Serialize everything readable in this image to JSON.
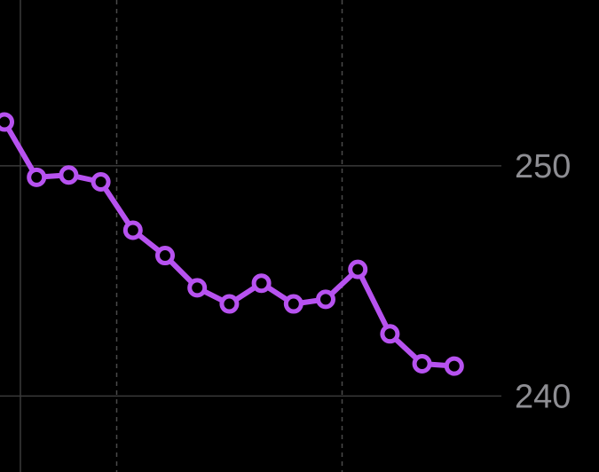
{
  "chart_data": {
    "type": "line",
    "title": "",
    "xlabel": "",
    "ylabel": "",
    "y_ticks": [
      {
        "value": 250,
        "label": "250"
      },
      {
        "value": 240,
        "label": "240"
      }
    ],
    "ylim": [
      236.7,
      257.2
    ],
    "grid": true,
    "series": [
      {
        "values": [
          251.9,
          249.5,
          249.6,
          249.3,
          247.2,
          246.1,
          244.7,
          244.0,
          244.9,
          244.0,
          244.2,
          245.5,
          242.7,
          241.4,
          241.3
        ]
      }
    ]
  },
  "colors": {
    "background": "#000000",
    "line": "#b752f0",
    "marker_fill": "#000000",
    "grid_solid": "#3a3a3a",
    "grid_dashed": "#4a4a4a",
    "tick_text": "#8e8e93"
  }
}
